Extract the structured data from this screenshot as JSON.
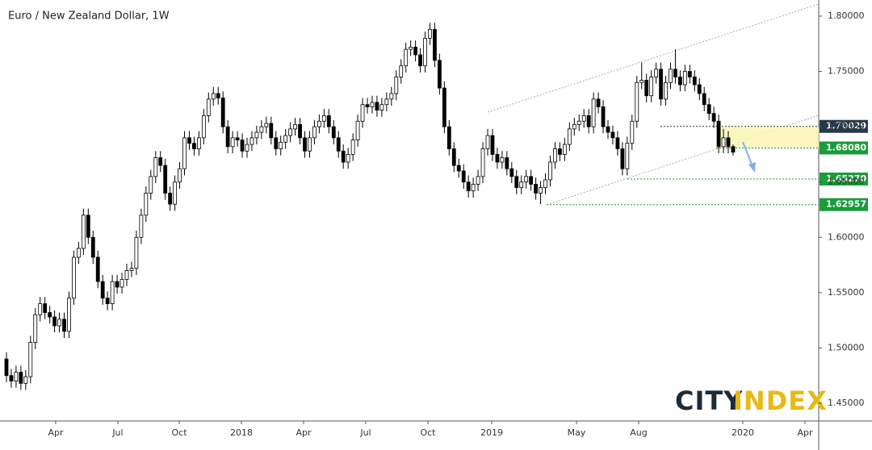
{
  "chart_data": {
    "type": "candlestick",
    "title": "Euro / New Zealand Dollar, 1W",
    "open": [
      1.49,
      1.475,
      1.47,
      1.478,
      1.468,
      1.474,
      1.505,
      1.53,
      1.54,
      1.532,
      1.528,
      1.52,
      1.526,
      1.515,
      1.545,
      1.582,
      1.59,
      1.62,
      1.6,
      1.582,
      1.56,
      1.545,
      1.54,
      1.56,
      1.555,
      1.562,
      1.57,
      1.572,
      1.6,
      1.62,
      1.64,
      1.655,
      1.672,
      1.665,
      1.64,
      1.63,
      1.65,
      1.662,
      1.69,
      1.685,
      1.68,
      1.69,
      1.71,
      1.725,
      1.73,
      1.726,
      1.7,
      1.682,
      1.69,
      1.688,
      1.678,
      1.684,
      1.69,
      1.695,
      1.7,
      1.703,
      1.69,
      1.68,
      1.686,
      1.692,
      1.698,
      1.702,
      1.69,
      1.678,
      1.69,
      1.7,
      1.705,
      1.71,
      1.7,
      1.69,
      1.678,
      1.668,
      1.675,
      1.688,
      1.705,
      1.72,
      1.718,
      1.722,
      1.715,
      1.72,
      1.725,
      1.73,
      1.745,
      1.755,
      1.77,
      1.772,
      1.765,
      1.755,
      1.78,
      1.788,
      1.76,
      1.735,
      1.7,
      1.68,
      1.665,
      1.66,
      1.65,
      1.642,
      1.648,
      1.655,
      1.68,
      1.692,
      1.675,
      1.668,
      1.672,
      1.662,
      1.655,
      1.645,
      1.65,
      1.655,
      1.648,
      1.64,
      1.645,
      1.652,
      1.668,
      1.68,
      1.675,
      1.684,
      1.698,
      1.702,
      1.705,
      1.71,
      1.7,
      1.725,
      1.718,
      1.7,
      1.695,
      1.69,
      1.68,
      1.662,
      1.685,
      1.705,
      1.74,
      1.742,
      1.728,
      1.745,
      1.752,
      1.725,
      1.74,
      1.752,
      1.745,
      1.738,
      1.75,
      1.745,
      1.738,
      1.73,
      1.72,
      1.712,
      1.705,
      1.682,
      1.69,
      1.682
    ],
    "high": [
      1.496,
      1.481,
      1.484,
      1.484,
      1.48,
      1.511,
      1.536,
      1.546,
      1.546,
      1.538,
      1.534,
      1.532,
      1.532,
      1.551,
      1.588,
      1.596,
      1.626,
      1.626,
      1.606,
      1.588,
      1.566,
      1.551,
      1.566,
      1.566,
      1.568,
      1.576,
      1.578,
      1.606,
      1.626,
      1.646,
      1.661,
      1.678,
      1.678,
      1.671,
      1.646,
      1.656,
      1.668,
      1.696,
      1.696,
      1.691,
      1.696,
      1.716,
      1.731,
      1.736,
      1.736,
      1.732,
      1.706,
      1.696,
      1.696,
      1.694,
      1.69,
      1.696,
      1.701,
      1.706,
      1.709,
      1.709,
      1.696,
      1.692,
      1.698,
      1.704,
      1.708,
      1.708,
      1.696,
      1.696,
      1.706,
      1.711,
      1.716,
      1.716,
      1.706,
      1.696,
      1.684,
      1.681,
      1.694,
      1.711,
      1.726,
      1.726,
      1.728,
      1.728,
      1.726,
      1.731,
      1.736,
      1.751,
      1.761,
      1.776,
      1.778,
      1.778,
      1.771,
      1.786,
      1.794,
      1.794,
      1.766,
      1.741,
      1.706,
      1.686,
      1.671,
      1.666,
      1.656,
      1.654,
      1.661,
      1.686,
      1.698,
      1.698,
      1.681,
      1.678,
      1.678,
      1.668,
      1.661,
      1.656,
      1.661,
      1.661,
      1.654,
      1.651,
      1.658,
      1.674,
      1.686,
      1.686,
      1.69,
      1.704,
      1.708,
      1.711,
      1.716,
      1.716,
      1.731,
      1.731,
      1.724,
      1.706,
      1.701,
      1.696,
      1.686,
      1.691,
      1.711,
      1.746,
      1.758,
      1.748,
      1.751,
      1.758,
      1.758,
      1.746,
      1.758,
      1.77,
      1.751,
      1.756,
      1.756,
      1.751,
      1.744,
      1.736,
      1.726,
      1.718,
      1.711,
      1.698,
      1.696,
      1.684
    ],
    "low": [
      1.469,
      1.464,
      1.464,
      1.462,
      1.462,
      1.468,
      1.499,
      1.524,
      1.526,
      1.522,
      1.514,
      1.514,
      1.509,
      1.509,
      1.539,
      1.576,
      1.584,
      1.594,
      1.576,
      1.554,
      1.539,
      1.534,
      1.534,
      1.549,
      1.549,
      1.556,
      1.564,
      1.566,
      1.594,
      1.614,
      1.634,
      1.649,
      1.659,
      1.634,
      1.624,
      1.624,
      1.644,
      1.656,
      1.679,
      1.674,
      1.674,
      1.684,
      1.704,
      1.719,
      1.72,
      1.694,
      1.676,
      1.676,
      1.682,
      1.672,
      1.672,
      1.678,
      1.684,
      1.689,
      1.694,
      1.684,
      1.674,
      1.674,
      1.68,
      1.686,
      1.692,
      1.684,
      1.672,
      1.672,
      1.684,
      1.694,
      1.699,
      1.694,
      1.684,
      1.672,
      1.662,
      1.662,
      1.669,
      1.682,
      1.699,
      1.712,
      1.712,
      1.709,
      1.709,
      1.714,
      1.719,
      1.724,
      1.739,
      1.749,
      1.764,
      1.759,
      1.749,
      1.749,
      1.774,
      1.754,
      1.729,
      1.694,
      1.674,
      1.659,
      1.654,
      1.644,
      1.636,
      1.636,
      1.642,
      1.649,
      1.674,
      1.669,
      1.662,
      1.662,
      1.656,
      1.649,
      1.639,
      1.639,
      1.644,
      1.642,
      1.634,
      1.63,
      1.639,
      1.646,
      1.662,
      1.669,
      1.669,
      1.678,
      1.692,
      1.696,
      1.699,
      1.694,
      1.694,
      1.712,
      1.694,
      1.689,
      1.684,
      1.674,
      1.656,
      1.656,
      1.679,
      1.699,
      1.734,
      1.722,
      1.722,
      1.739,
      1.719,
      1.719,
      1.734,
      1.739,
      1.732,
      1.732,
      1.739,
      1.732,
      1.724,
      1.714,
      1.706,
      1.699,
      1.676,
      1.676,
      1.676,
      1.674
    ],
    "close": [
      1.475,
      1.47,
      1.478,
      1.468,
      1.474,
      1.505,
      1.53,
      1.54,
      1.532,
      1.528,
      1.52,
      1.526,
      1.515,
      1.545,
      1.582,
      1.59,
      1.62,
      1.6,
      1.582,
      1.56,
      1.545,
      1.54,
      1.56,
      1.555,
      1.562,
      1.57,
      1.572,
      1.6,
      1.62,
      1.64,
      1.655,
      1.672,
      1.665,
      1.64,
      1.63,
      1.65,
      1.662,
      1.69,
      1.685,
      1.68,
      1.69,
      1.71,
      1.725,
      1.73,
      1.726,
      1.7,
      1.682,
      1.69,
      1.688,
      1.678,
      1.684,
      1.69,
      1.695,
      1.7,
      1.703,
      1.69,
      1.68,
      1.686,
      1.692,
      1.698,
      1.702,
      1.69,
      1.678,
      1.69,
      1.7,
      1.705,
      1.71,
      1.7,
      1.69,
      1.678,
      1.668,
      1.675,
      1.688,
      1.705,
      1.72,
      1.718,
      1.722,
      1.715,
      1.72,
      1.725,
      1.73,
      1.745,
      1.755,
      1.77,
      1.772,
      1.765,
      1.755,
      1.78,
      1.788,
      1.76,
      1.735,
      1.7,
      1.68,
      1.665,
      1.66,
      1.65,
      1.642,
      1.648,
      1.655,
      1.68,
      1.692,
      1.675,
      1.668,
      1.672,
      1.662,
      1.655,
      1.645,
      1.65,
      1.655,
      1.648,
      1.64,
      1.645,
      1.652,
      1.668,
      1.68,
      1.675,
      1.684,
      1.698,
      1.702,
      1.705,
      1.71,
      1.7,
      1.725,
      1.718,
      1.7,
      1.695,
      1.69,
      1.68,
      1.662,
      1.685,
      1.705,
      1.74,
      1.742,
      1.728,
      1.745,
      1.752,
      1.725,
      1.74,
      1.752,
      1.745,
      1.738,
      1.75,
      1.745,
      1.738,
      1.73,
      1.72,
      1.712,
      1.705,
      1.682,
      1.69,
      1.682,
      1.677
    ],
    "up_color": "#ffffff",
    "down_color": "#000000",
    "xlim": [
      -1.34,
      168.79
    ],
    "xticks": [
      {
        "value": 10.23,
        "label": "Apr"
      },
      {
        "value": 23.15,
        "label": "Jul"
      },
      {
        "value": 35.91,
        "label": "Oct"
      },
      {
        "value": 48.83,
        "label": "2018"
      },
      {
        "value": 61.74,
        "label": "Apr"
      },
      {
        "value": 74.66,
        "label": "Jul"
      },
      {
        "value": 87.58,
        "label": "Oct"
      },
      {
        "value": 100.84,
        "label": "2019"
      },
      {
        "value": 118.46,
        "label": "May"
      },
      {
        "value": 131.38,
        "label": "Aug"
      },
      {
        "value": 153.02,
        "label": "2020"
      },
      {
        "value": 165.94,
        "label": "Apr"
      }
    ],
    "ylim": [
      1.43396,
      1.81458
    ],
    "yticks": [
      {
        "value": 1.45,
        "label": "1.45000"
      },
      {
        "value": 1.5,
        "label": "1.50000"
      },
      {
        "value": 1.55,
        "label": "1.55000"
      },
      {
        "value": 1.6,
        "label": "1.60000"
      },
      {
        "value": 1.65,
        "label": "1.65000"
      },
      {
        "value": 1.7,
        "label": "1.70000"
      },
      {
        "value": 1.75,
        "label": "1.75000"
      },
      {
        "value": 1.8,
        "label": "1.80000"
      }
    ],
    "grid": false,
    "levels": [
      {
        "value": 1.70029,
        "label": "1.70029",
        "color": "#26394a"
      },
      {
        "value": 1.6808,
        "label": "1.68080",
        "color": "#1b9b3a"
      },
      {
        "value": 1.6527,
        "label": "1.65270",
        "color": "#1b9b3a"
      },
      {
        "value": 1.62957,
        "label": "1.62957",
        "color": "#1b9b3a"
      }
    ]
  },
  "logo": {
    "city": "CITY",
    "index": "INDEX"
  }
}
